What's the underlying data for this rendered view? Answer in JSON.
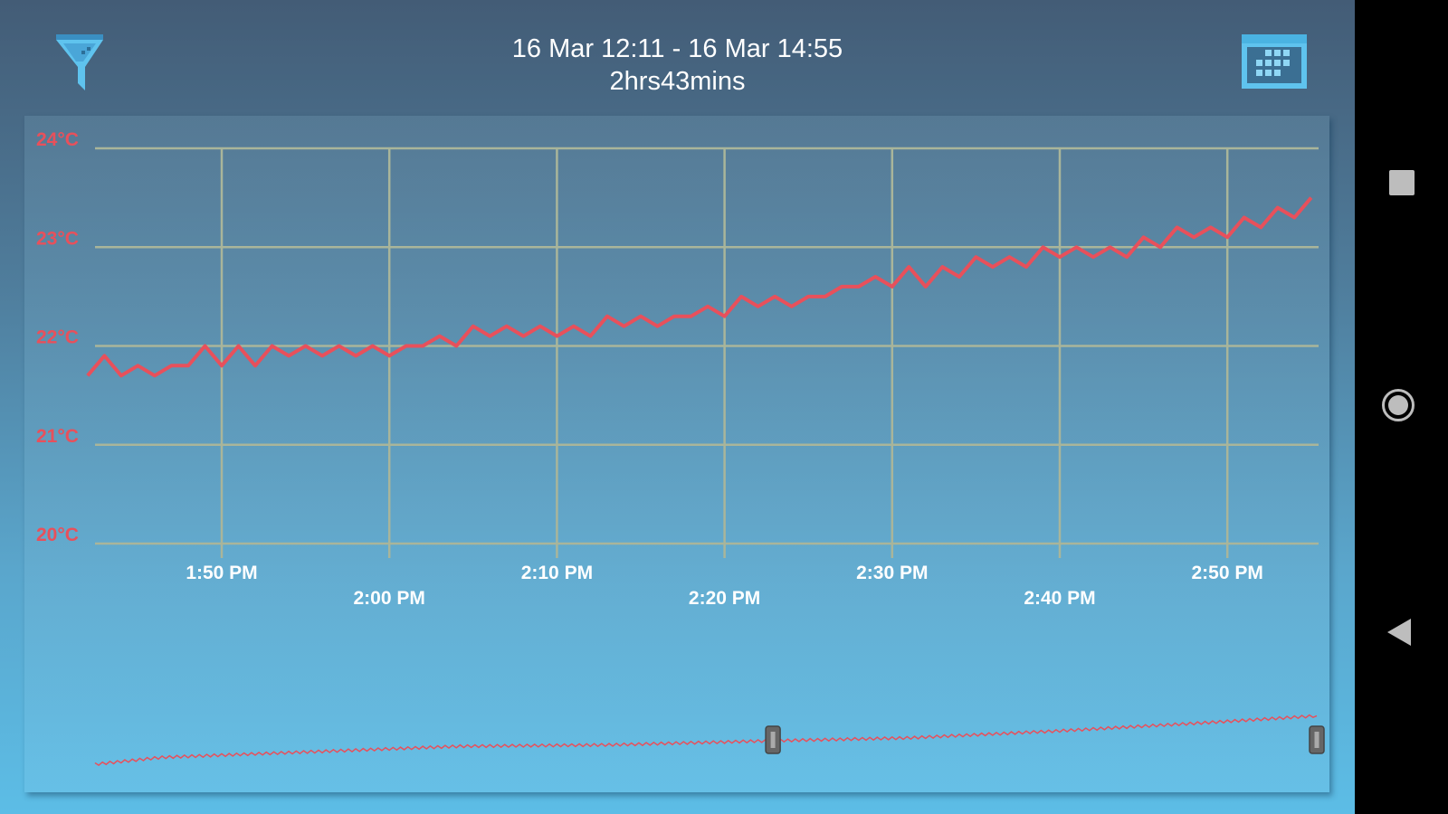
{
  "header": {
    "date_range": "16 Mar 12:11 - 16 Mar 14:55",
    "duration": "2hrs43mins",
    "filter_icon": "filter-funnel-icon",
    "calendar_icon": "calendar-icon"
  },
  "colors": {
    "line": "#e8505b",
    "grid": "#a9b59a",
    "y_label": "#e8505b",
    "x_label": "#ffffff",
    "handle": "#666666"
  },
  "navbar": {
    "recents_icon": "square-icon",
    "home_icon": "circle-icon",
    "back_icon": "triangle-back-icon"
  },
  "chart_data": [
    {
      "type": "line",
      "grid": true,
      "ylim": [
        20,
        24
      ],
      "xlim": [
        "13:42",
        "14:55"
      ],
      "y_ticks": [
        "20°C",
        "21°C",
        "22°C",
        "23°C",
        "24°C"
      ],
      "y_tick_values": [
        20,
        21,
        22,
        23,
        24
      ],
      "x_ticks": [
        "1:50 PM",
        "2:00 PM",
        "2:10 PM",
        "2:20 PM",
        "2:30 PM",
        "2:40 PM",
        "2:50 PM"
      ],
      "x_tick_times": [
        "13:50",
        "14:00",
        "14:10",
        "14:20",
        "14:30",
        "14:40",
        "14:50"
      ],
      "start_time": "13:42",
      "interval_minutes": 1,
      "values": [
        21.7,
        21.9,
        21.7,
        21.8,
        21.7,
        21.8,
        21.8,
        22.0,
        21.8,
        22.0,
        21.8,
        22.0,
        21.9,
        22.0,
        21.9,
        22.0,
        21.9,
        22.0,
        21.9,
        22.0,
        22.0,
        22.1,
        22.0,
        22.2,
        22.1,
        22.2,
        22.1,
        22.2,
        22.1,
        22.2,
        22.1,
        22.3,
        22.2,
        22.3,
        22.2,
        22.3,
        22.3,
        22.4,
        22.3,
        22.5,
        22.4,
        22.5,
        22.4,
        22.5,
        22.5,
        22.6,
        22.6,
        22.7,
        22.6,
        22.8,
        22.6,
        22.8,
        22.7,
        22.9,
        22.8,
        22.9,
        22.8,
        23.0,
        22.9,
        23.0,
        22.9,
        23.0,
        22.9,
        23.1,
        23.0,
        23.2,
        23.1,
        23.2,
        23.1,
        23.3,
        23.2,
        23.4,
        23.3,
        23.5
      ]
    },
    {
      "type": "line",
      "xlim": [
        "12:11",
        "14:55"
      ],
      "points": [
        [
          "12:11",
          20.0
        ],
        [
          "12:20",
          20.5
        ],
        [
          "12:40",
          20.9
        ],
        [
          "13:00",
          21.3
        ],
        [
          "13:20",
          21.4
        ],
        [
          "13:42",
          21.7
        ],
        [
          "14:00",
          21.9
        ],
        [
          "14:20",
          22.4
        ],
        [
          "14:40",
          23.0
        ],
        [
          "14:55",
          23.5
        ]
      ],
      "selection": [
        "13:42",
        "14:55"
      ]
    }
  ]
}
